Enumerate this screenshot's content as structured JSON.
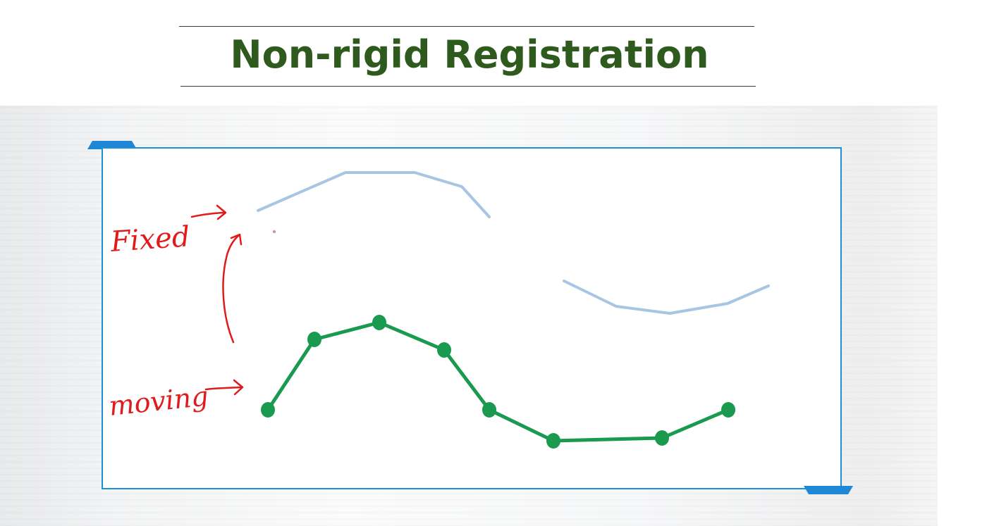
{
  "slide": {
    "title": "Non-rigid Registration"
  },
  "annotations": {
    "fixed_label": "Fixed",
    "moving_label": "moving"
  },
  "colors": {
    "title_text": "#2f5a1e",
    "panel_border": "#1e90d8",
    "fixed_curve": "#a6c6e4",
    "moving_curve": "#1a9a4e",
    "annotation": "#e01b1b"
  }
}
